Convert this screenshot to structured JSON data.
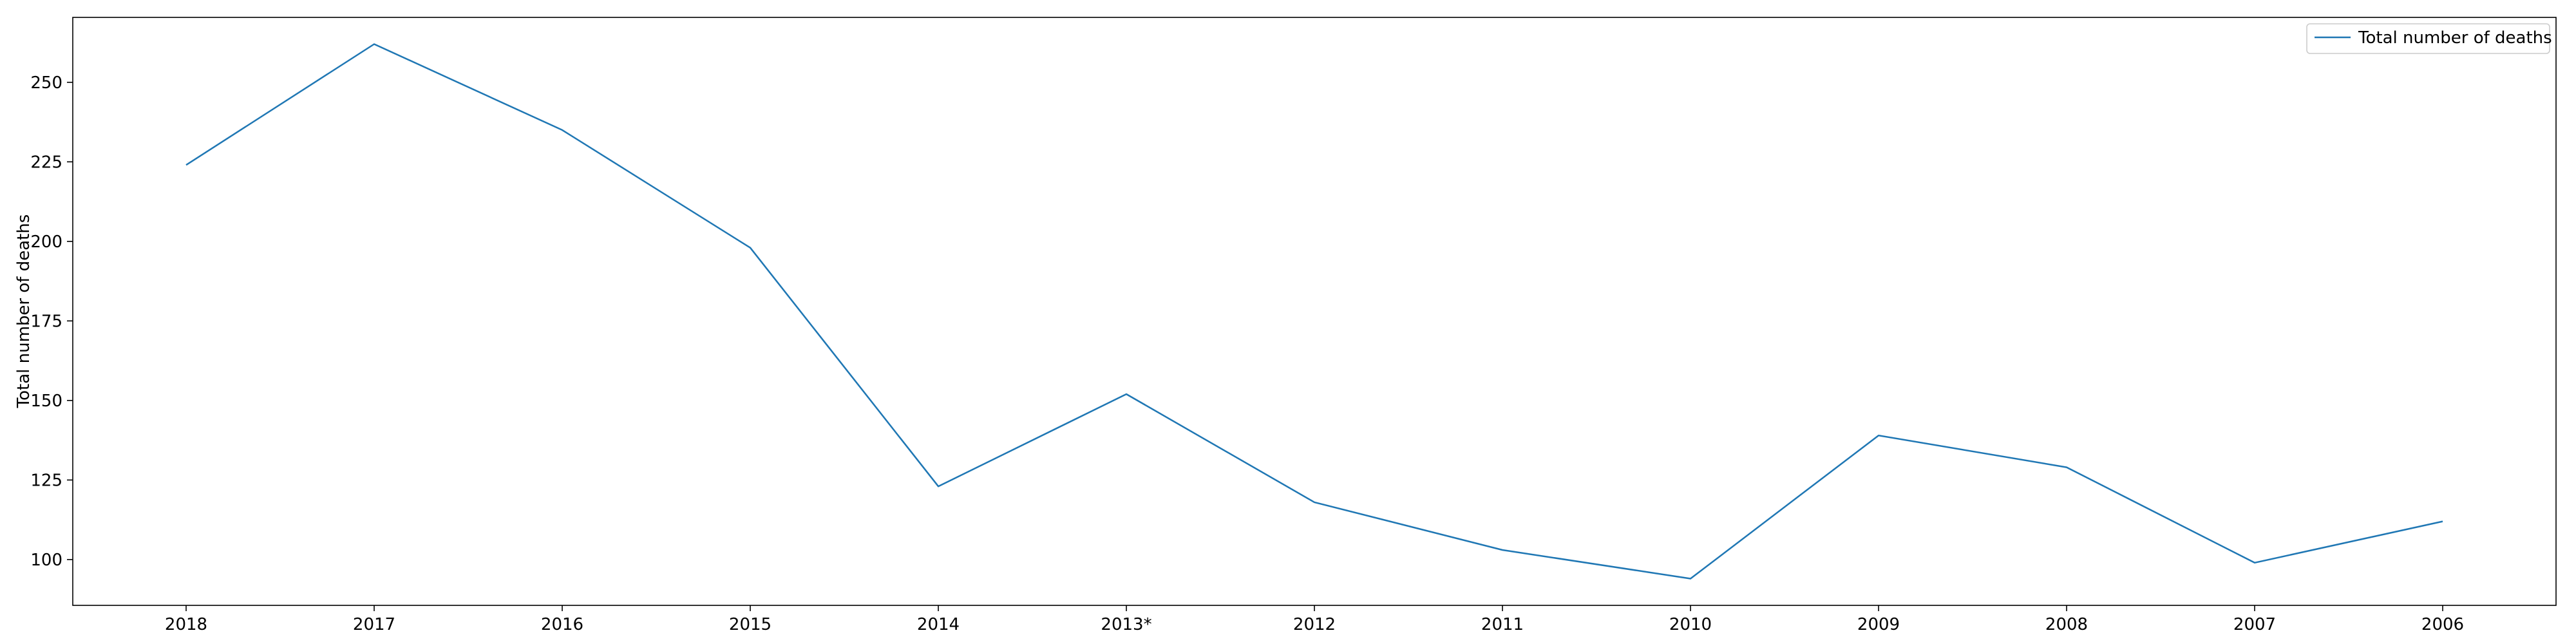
{
  "chart_data": {
    "type": "line",
    "categories": [
      "2018",
      "2017",
      "2016",
      "2015",
      "2014",
      "2013*",
      "2012",
      "2011",
      "2010",
      "2009",
      "2008",
      "2007",
      "2006"
    ],
    "series": [
      {
        "name": "Total number of deaths",
        "values": [
          224,
          262,
          235,
          198,
          123,
          152,
          118,
          103,
          94,
          139,
          129,
          99,
          112
        ],
        "color": "#1f77b4"
      }
    ],
    "title": "",
    "xlabel": "",
    "ylabel": "Total number of deaths",
    "yticks": [
      100,
      125,
      150,
      175,
      200,
      225,
      250
    ],
    "ylim": [
      85.6,
      270.4
    ],
    "grid": false,
    "legend_position": "top-right"
  }
}
